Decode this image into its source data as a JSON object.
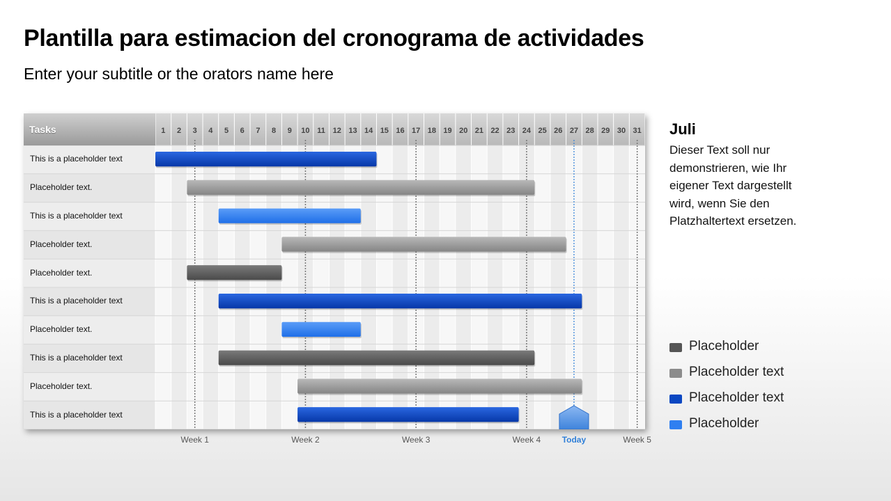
{
  "title": "Plantilla para estimacion del cronograma de actividades",
  "subtitle": "Enter your subtitle or the orators name here",
  "colors": {
    "dark_gray": "#555555",
    "gray": "#8c8c8c",
    "blue": "#0a47c2",
    "light_blue": "#2f7ff0",
    "today": "#2f7fd8"
  },
  "chart_data": {
    "type": "gantt",
    "tasks_header": "Tasks",
    "days": [
      "1",
      "2",
      "3",
      "4",
      "5",
      "6",
      "7",
      "8",
      "9",
      "10",
      "11",
      "12",
      "13",
      "14",
      "15",
      "16",
      "17",
      "18",
      "19",
      "20",
      "21",
      "22",
      "23",
      "24",
      "25",
      "26",
      "27",
      "28",
      "29",
      "30",
      "31"
    ],
    "today_day": 27,
    "tasks": [
      {
        "label": "This is a placeholder text",
        "start": 1,
        "end": 14,
        "color": "blue"
      },
      {
        "label": "Placeholder text.",
        "start": 3,
        "end": 24,
        "color": "gray"
      },
      {
        "label": "This is a placeholder text",
        "start": 5,
        "end": 13,
        "color": "light_blue"
      },
      {
        "label": "Placeholder text.",
        "start": 9,
        "end": 26,
        "color": "gray"
      },
      {
        "label": "Placeholder text.",
        "start": 3,
        "end": 8,
        "color": "dark_gray"
      },
      {
        "label": "This is a placeholder text",
        "start": 5,
        "end": 27,
        "color": "blue"
      },
      {
        "label": "Placeholder text.",
        "start": 9,
        "end": 13,
        "color": "light_blue"
      },
      {
        "label": "This is a placeholder text",
        "start": 5,
        "end": 24,
        "color": "dark_gray"
      },
      {
        "label": "Placeholder text.",
        "start": 10,
        "end": 27,
        "color": "gray"
      },
      {
        "label": "This is a placeholder text",
        "start": 10,
        "end": 23,
        "color": "blue"
      }
    ],
    "week_markers": [
      {
        "label": "Week 1",
        "day": 3,
        "today": false
      },
      {
        "label": "Week 2",
        "day": 10,
        "today": false
      },
      {
        "label": "Week 3",
        "day": 17,
        "today": false
      },
      {
        "label": "Week 4",
        "day": 24,
        "today": false
      },
      {
        "label": "Today",
        "day": 27,
        "today": true
      },
      {
        "label": "Week 5",
        "day": 31,
        "today": false
      }
    ]
  },
  "side_panel": {
    "month": "Juli",
    "text": "Dieser Text soll nur demonstrieren,  wie Ihr eigener Text dargestellt wird, wenn Sie den Platzhaltertext ersetzen."
  },
  "legend": [
    {
      "label": "Placeholder",
      "color": "#555555"
    },
    {
      "label": "Placeholder text",
      "color": "#8c8c8c"
    },
    {
      "label": "Placeholder text",
      "color": "#0a47c2"
    },
    {
      "label": "Placeholder",
      "color": "#2f7ff0"
    }
  ]
}
